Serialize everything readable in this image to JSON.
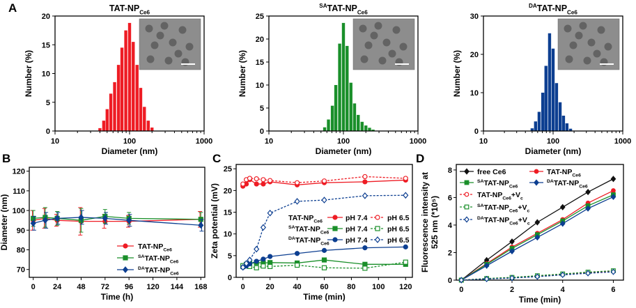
{
  "colors": {
    "red": "#ee1c24",
    "green": "#1a8f2a",
    "blue": "#0d3f91",
    "black": "#111111"
  },
  "chart_data": [
    {
      "panel": "A",
      "type": "bar",
      "subtitle_base": "TAT-NP",
      "subtitle_sub": "Ce6",
      "subtitle_sup": "",
      "xlabel": "Diameter (nm)",
      "ylabel": "Number (%)",
      "xscale": "log",
      "xlim": [
        10,
        1000
      ],
      "ylim": [
        0,
        20
      ],
      "yticks": [
        0,
        5,
        10,
        15,
        20
      ],
      "xticks": [
        10,
        100,
        1000
      ],
      "color": "#ee1c24",
      "has_tem_inset": true,
      "diameters": [
        40,
        45,
        50,
        56,
        63,
        71,
        79,
        89,
        100,
        112,
        126,
        141,
        158,
        178,
        200
      ],
      "values": [
        0.5,
        1.8,
        3.8,
        6.5,
        8.5,
        11.5,
        14.5,
        17.5,
        18.8,
        15.5,
        11.5,
        7.5,
        4.2,
        1.8,
        0.6
      ]
    },
    {
      "panel": "",
      "type": "bar",
      "subtitle_base": "TAT-NP",
      "subtitle_sub": "Ce6",
      "subtitle_sup": "SA",
      "xlabel": "Diameter (nm)",
      "ylabel": "Number (%)",
      "xscale": "log",
      "xlim": [
        10,
        1000
      ],
      "ylim": [
        0,
        25
      ],
      "yticks": [
        0,
        5,
        10,
        15,
        20,
        25
      ],
      "xticks": [
        10,
        100,
        1000
      ],
      "color": "#1a8f2a",
      "has_tem_inset": true,
      "diameters": [
        56,
        63,
        71,
        79,
        89,
        100,
        112,
        126,
        141,
        158,
        178,
        200,
        224,
        250
      ],
      "values": [
        0.8,
        2.5,
        5.5,
        10,
        19,
        23.5,
        18.5,
        10.5,
        6,
        3.5,
        2,
        1.2,
        0.7,
        0.3
      ]
    },
    {
      "panel": "",
      "type": "bar",
      "subtitle_base": "TAT-NP",
      "subtitle_sub": "Ce6",
      "subtitle_sup": "DA",
      "xlabel": "Diameter (nm)",
      "ylabel": "Number (%)",
      "xscale": "log",
      "xlim": [
        10,
        1000
      ],
      "ylim": [
        0,
        30
      ],
      "yticks": [
        0,
        10,
        20,
        30
      ],
      "xticks": [
        10,
        100,
        1000
      ],
      "color": "#0d3f91",
      "has_tem_inset": true,
      "diameters": [
        50,
        56,
        63,
        71,
        79,
        89,
        100,
        112,
        126,
        141,
        158,
        178
      ],
      "values": [
        0.7,
        2.5,
        5,
        10,
        17,
        25.5,
        21.5,
        12.5,
        7.5,
        4,
        2,
        0.6
      ]
    },
    {
      "panel": "B",
      "type": "line",
      "xlabel": "Time (h)",
      "ylabel": "Diameter (nm)",
      "xlim": [
        -4,
        172
      ],
      "ylim": [
        66,
        122
      ],
      "xticks": [
        0,
        24,
        48,
        72,
        96,
        120,
        144,
        168
      ],
      "yticks": [
        70,
        80,
        90,
        100,
        110,
        120
      ],
      "legend_position": "bottom-right",
      "series": [
        {
          "name_base": "TAT-NP",
          "name_sub": "Ce6",
          "name_sup": "",
          "color": "#ee1c24",
          "marker": "circle",
          "x": [
            0,
            12,
            24,
            48,
            72,
            96,
            168
          ],
          "y": [
            95,
            96,
            95,
            94.5,
            94.5,
            94.5,
            95.5
          ],
          "err": [
            5,
            5,
            3,
            7,
            3.5,
            3,
            4
          ]
        },
        {
          "name_base": "TAT-NP",
          "name_sub": "Ce6",
          "name_sup": "SA",
          "color": "#1a8f2a",
          "marker": "square",
          "x": [
            0,
            12,
            24,
            48,
            72,
            96,
            168
          ],
          "y": [
            96,
            96.5,
            96,
            95,
            97,
            96,
            95.5
          ],
          "err": [
            4,
            5,
            3.5,
            6,
            3.5,
            3,
            3.5
          ]
        },
        {
          "name_base": "TAT-NP",
          "name_sub": "Ce6",
          "name_sup": "DA",
          "color": "#0d3f91",
          "marker": "diamond",
          "x": [
            0,
            12,
            24,
            48,
            72,
            96,
            168
          ],
          "y": [
            93.5,
            95,
            96,
            96.5,
            96,
            95,
            92.5
          ],
          "err": [
            3.5,
            4,
            3,
            3.5,
            3,
            3,
            3
          ]
        }
      ]
    },
    {
      "panel": "C",
      "type": "line",
      "xlabel": "Time (min)",
      "ylabel": "Zeta potential (mV)",
      "xlim": [
        -5,
        125
      ],
      "ylim": [
        0,
        26
      ],
      "xticks": [
        0,
        20,
        40,
        60,
        80,
        100,
        120
      ],
      "yticks": [
        0,
        5,
        10,
        15,
        20,
        25
      ],
      "legend_title_col1": "",
      "ph_label_74": "pH 7.4",
      "ph_label_65": "pH 6.5",
      "legend_position": "center",
      "series": [
        {
          "name_base": "TAT-NP",
          "name_sub": "Ce6",
          "name_sup": "",
          "ph": "7.4",
          "color": "#ee1c24",
          "marker": "circle",
          "filled": true,
          "dash": false,
          "x": [
            0,
            2.5,
            5,
            10,
            15,
            20,
            40,
            60,
            90,
            120
          ],
          "y": [
            21,
            21.5,
            22.5,
            21.5,
            21.5,
            22,
            21.3,
            21.8,
            22,
            22.4
          ]
        },
        {
          "name_base": "TAT-NP",
          "name_sub": "Ce6",
          "name_sup": "",
          "ph": "6.5",
          "color": "#ee1c24",
          "marker": "circle",
          "filled": false,
          "dash": true,
          "x": [
            0,
            2.5,
            5,
            10,
            15,
            20,
            40,
            60,
            90,
            120
          ],
          "y": [
            21.5,
            22.5,
            22.8,
            22.7,
            22.5,
            22.3,
            21.8,
            22.2,
            23.2,
            22.8
          ]
        },
        {
          "name_base": "TAT-NP",
          "name_sub": "Ce6",
          "name_sup": "SA",
          "ph": "7.4",
          "color": "#1a8f2a",
          "marker": "square",
          "filled": true,
          "dash": false,
          "x": [
            0,
            2.5,
            5,
            10,
            15,
            20,
            40,
            60,
            90,
            120
          ],
          "y": [
            2.5,
            3,
            3.2,
            3.4,
            3.3,
            3.4,
            3.3,
            4,
            3,
            3
          ]
        },
        {
          "name_base": "TAT-NP",
          "name_sub": "Ce6",
          "name_sup": "SA",
          "ph": "6.5",
          "color": "#1a8f2a",
          "marker": "square",
          "filled": false,
          "dash": true,
          "x": [
            0,
            2.5,
            5,
            10,
            15,
            20,
            40,
            60,
            90,
            120
          ],
          "y": [
            2.7,
            2.8,
            2.5,
            2.2,
            2.6,
            2.5,
            2.8,
            2.2,
            2.1,
            3.5
          ]
        },
        {
          "name_base": "TAT-NP",
          "name_sub": "Ce6",
          "name_sup": "DA",
          "ph": "7.4",
          "color": "#0d3f91",
          "marker": "circle",
          "filled": true,
          "dash": false,
          "x": [
            0,
            2.5,
            5,
            10,
            15,
            20,
            40,
            60,
            90,
            120
          ],
          "y": [
            2.3,
            2.6,
            3.1,
            3.7,
            4.2,
            4.8,
            5.5,
            6.2,
            6.8,
            7
          ]
        },
        {
          "name_base": "TAT-NP",
          "name_sub": "Ce6",
          "name_sup": "DA",
          "ph": "6.5",
          "color": "#0d3f91",
          "marker": "diamond",
          "filled": false,
          "dash": true,
          "x": [
            0,
            2.5,
            5,
            10,
            15,
            20,
            40,
            60,
            90,
            120
          ],
          "y": [
            2.3,
            3.2,
            4,
            6.5,
            11.5,
            14.8,
            17.5,
            17.8,
            18.8,
            18.9
          ]
        }
      ]
    },
    {
      "panel": "D",
      "type": "line",
      "xlabel": "Time (min)",
      "ylabel_line1": "Fluorescence intensity at",
      "ylabel_line2": "525 nm (*10⁵)",
      "xlim": [
        -0.2,
        6.4
      ],
      "ylim": [
        0,
        8.4
      ],
      "xticks": [
        0,
        2,
        4,
        6
      ],
      "yticks": [
        0,
        2,
        4,
        6,
        8
      ],
      "legend_position": "top-left",
      "series": [
        {
          "label": "free Ce6",
          "color": "#111111",
          "marker": "diamond",
          "filled": true,
          "dash": false,
          "x": [
            0,
            1,
            2,
            3,
            4,
            5,
            6
          ],
          "y": [
            0,
            1.45,
            2.8,
            4.2,
            5.3,
            6.4,
            7.35
          ],
          "err": [
            0,
            0.08,
            0.12,
            0.12,
            0.15,
            0.2,
            0.12
          ]
        },
        {
          "name_base": "TAT-NP",
          "name_sub": "Ce6",
          "name_sup": "",
          "vc": false,
          "color": "#ee1c24",
          "marker": "circle",
          "filled": true,
          "dash": false,
          "x": [
            0,
            1,
            2,
            3,
            4,
            5,
            6
          ],
          "y": [
            0,
            1.2,
            2.4,
            3.4,
            4.4,
            5.6,
            6.5
          ],
          "err": [
            0,
            0.06,
            0.1,
            0.1,
            0.12,
            0.14,
            0.15
          ]
        },
        {
          "name_base": "TAT-NP",
          "name_sub": "Ce6",
          "name_sup": "SA",
          "vc": false,
          "color": "#1a8f2a",
          "marker": "square",
          "filled": true,
          "dash": false,
          "x": [
            0,
            1,
            2,
            3,
            4,
            5,
            6
          ],
          "y": [
            0,
            1.15,
            2.3,
            3.3,
            4.3,
            5.4,
            6.2
          ],
          "err": [
            0,
            0.06,
            0.1,
            0.1,
            0.12,
            0.14,
            0.15
          ]
        },
        {
          "name_base": "TAT-NP",
          "name_sub": "Ce6",
          "name_sup": "DA",
          "vc": false,
          "color": "#0d3f91",
          "marker": "diamond",
          "filled": true,
          "dash": false,
          "x": [
            0,
            1,
            2,
            3,
            4,
            5,
            6
          ],
          "y": [
            0,
            1.05,
            2.1,
            3.1,
            4.1,
            5.2,
            6.05
          ],
          "err": [
            0,
            0.06,
            0.1,
            0.1,
            0.12,
            0.14,
            0.15
          ]
        },
        {
          "name_base": "TAT-NP",
          "name_sub": "Ce6",
          "name_sup": "",
          "vc": true,
          "suffix": "+V",
          "suffix_sub": "c",
          "color": "#ee1c24",
          "marker": "circle",
          "filled": false,
          "dash": true,
          "x": [
            0,
            1,
            2,
            3,
            4,
            5,
            6
          ],
          "y": [
            0,
            0.1,
            0.18,
            0.3,
            0.42,
            0.55,
            0.65
          ],
          "err": [
            0,
            0.02,
            0.02,
            0.03,
            0.03,
            0.03,
            0.04
          ]
        },
        {
          "name_base": "TAT-NP",
          "name_sub": "Ce6",
          "name_sup": "SA",
          "vc": true,
          "suffix": "+V",
          "suffix_sub": "c",
          "color": "#1a8f2a",
          "marker": "square",
          "filled": false,
          "dash": true,
          "x": [
            0,
            1,
            2,
            3,
            4,
            5,
            6
          ],
          "y": [
            0,
            0.12,
            0.2,
            0.32,
            0.45,
            0.58,
            0.68
          ],
          "err": [
            0,
            0.02,
            0.02,
            0.03,
            0.03,
            0.03,
            0.04
          ]
        },
        {
          "name_base": "TAT-NP",
          "name_sub": "Ce6",
          "name_sup": "DA",
          "vc": true,
          "suffix": "+V",
          "suffix_sub": "c",
          "color": "#0d3f91",
          "marker": "diamond",
          "filled": false,
          "dash": true,
          "x": [
            0,
            1,
            2,
            3,
            4,
            5,
            6
          ],
          "y": [
            0,
            0.08,
            0.15,
            0.25,
            0.38,
            0.5,
            0.6
          ],
          "err": [
            0,
            0.02,
            0.02,
            0.03,
            0.03,
            0.03,
            0.04
          ]
        }
      ]
    }
  ]
}
